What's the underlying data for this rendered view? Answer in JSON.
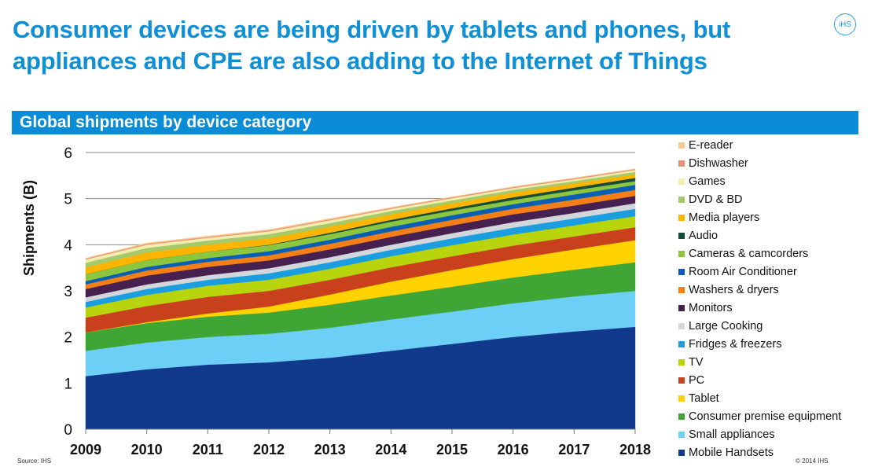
{
  "page": {
    "title": "Consumer devices are being driven by tablets and phones, but appliances and CPE are also adding to the Internet of Things",
    "logo_text": "iHS",
    "subheader": "Global shipments by device category",
    "source": "Source: IHS",
    "copyright": "© 2014 IHS"
  },
  "chart_data": {
    "type": "area",
    "stacked": true,
    "title": "Global shipments by device category",
    "xlabel": "",
    "ylabel": "Shipments (B)",
    "ylim": [
      0,
      6
    ],
    "yticks": [
      0,
      1,
      2,
      3,
      4,
      5,
      6
    ],
    "grid": true,
    "legend_position": "right",
    "categories": [
      "2009",
      "2010",
      "2011",
      "2012",
      "2013",
      "2014",
      "2015",
      "2016",
      "2017",
      "2018"
    ],
    "series": [
      {
        "name": "Mobile Handsets",
        "color": "#123a8c",
        "values": [
          1.15,
          1.3,
          1.4,
          1.45,
          1.55,
          1.7,
          1.85,
          2.0,
          2.12,
          2.22
        ]
      },
      {
        "name": "Small appliances",
        "color": "#6dcff6",
        "values": [
          0.55,
          0.58,
          0.6,
          0.62,
          0.65,
          0.68,
          0.7,
          0.73,
          0.76,
          0.78
        ]
      },
      {
        "name": "Consumer premise equipment",
        "color": "#3fa535",
        "values": [
          0.4,
          0.42,
          0.44,
          0.46,
          0.5,
          0.52,
          0.54,
          0.56,
          0.58,
          0.62
        ]
      },
      {
        "name": "Tablet",
        "color": "#ffd200",
        "values": [
          0.0,
          0.02,
          0.07,
          0.13,
          0.22,
          0.3,
          0.36,
          0.4,
          0.44,
          0.48
        ]
      },
      {
        "name": "PC",
        "color": "#c9401d",
        "values": [
          0.32,
          0.35,
          0.36,
          0.34,
          0.32,
          0.31,
          0.3,
          0.29,
          0.28,
          0.28
        ]
      },
      {
        "name": "TV",
        "color": "#b8d40c",
        "values": [
          0.22,
          0.24,
          0.24,
          0.24,
          0.24,
          0.24,
          0.24,
          0.24,
          0.24,
          0.24
        ]
      },
      {
        "name": "Fridges & freezers",
        "color": "#1a9ee0",
        "values": [
          0.12,
          0.13,
          0.13,
          0.14,
          0.14,
          0.14,
          0.15,
          0.15,
          0.15,
          0.16
        ]
      },
      {
        "name": "Large Cooking",
        "color": "#d3d6db",
        "values": [
          0.1,
          0.1,
          0.1,
          0.11,
          0.11,
          0.11,
          0.11,
          0.12,
          0.12,
          0.12
        ]
      },
      {
        "name": "Monitors",
        "color": "#46204f",
        "values": [
          0.18,
          0.19,
          0.18,
          0.17,
          0.17,
          0.17,
          0.17,
          0.17,
          0.16,
          0.16
        ]
      },
      {
        "name": "Washers & dryers",
        "color": "#f47f16",
        "values": [
          0.1,
          0.11,
          0.11,
          0.11,
          0.12,
          0.12,
          0.12,
          0.12,
          0.13,
          0.13
        ]
      },
      {
        "name": "Room Air Conditioner",
        "color": "#0a5fb4",
        "values": [
          0.07,
          0.08,
          0.08,
          0.09,
          0.09,
          0.1,
          0.1,
          0.1,
          0.11,
          0.11
        ]
      },
      {
        "name": "Cameras & camcorders",
        "color": "#8cc63f",
        "values": [
          0.15,
          0.15,
          0.14,
          0.13,
          0.12,
          0.11,
          0.1,
          0.09,
          0.09,
          0.08
        ]
      },
      {
        "name": "Audio",
        "color": "#174d36",
        "values": [
          0.0,
          0.0,
          0.0,
          0.01,
          0.03,
          0.04,
          0.05,
          0.06,
          0.06,
          0.07
        ]
      },
      {
        "name": "Media players",
        "color": "#ffb400",
        "values": [
          0.15,
          0.16,
          0.15,
          0.14,
          0.13,
          0.12,
          0.11,
          0.1,
          0.09,
          0.08
        ]
      },
      {
        "name": "DVD & BD",
        "color": "#a6c96a",
        "values": [
          0.1,
          0.1,
          0.09,
          0.09,
          0.08,
          0.07,
          0.06,
          0.06,
          0.05,
          0.05
        ]
      },
      {
        "name": "Games",
        "color": "#f1eeae",
        "values": [
          0.07,
          0.07,
          0.06,
          0.06,
          0.06,
          0.05,
          0.05,
          0.04,
          0.04,
          0.04
        ]
      },
      {
        "name": "Dishwasher",
        "color": "#e8927c",
        "values": [
          0.02,
          0.02,
          0.02,
          0.02,
          0.02,
          0.02,
          0.02,
          0.02,
          0.02,
          0.02
        ]
      },
      {
        "name": "E-reader",
        "color": "#fbc98e",
        "values": [
          0.01,
          0.02,
          0.02,
          0.02,
          0.02,
          0.01,
          0.01,
          0.01,
          0.01,
          0.01
        ]
      }
    ]
  }
}
